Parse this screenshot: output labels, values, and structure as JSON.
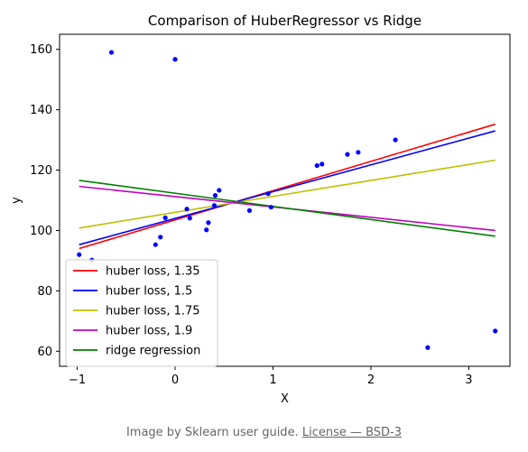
{
  "chart_data": {
    "type": "scatter",
    "title": "Comparison of HuberRegressor vs Ridge",
    "xlabel": "X",
    "ylabel": "y",
    "xlim": [
      -1.18,
      3.42
    ],
    "ylim": [
      55,
      165
    ],
    "xticks": [
      -1,
      0,
      1,
      2,
      3
    ],
    "yticks": [
      60,
      80,
      100,
      120,
      140,
      160
    ],
    "grid": false,
    "legend": "lower-left",
    "points": [
      {
        "x": -0.98,
        "y": 92.0
      },
      {
        "x": -0.85,
        "y": 90.2
      },
      {
        "x": -0.65,
        "y": 159.0
      },
      {
        "x": 0.0,
        "y": 156.7
      },
      {
        "x": -0.2,
        "y": 95.3
      },
      {
        "x": -0.15,
        "y": 97.8
      },
      {
        "x": -0.1,
        "y": 104.2
      },
      {
        "x": 0.12,
        "y": 107.1
      },
      {
        "x": 0.15,
        "y": 104.1
      },
      {
        "x": 0.32,
        "y": 100.2
      },
      {
        "x": 0.34,
        "y": 102.6
      },
      {
        "x": 0.4,
        "y": 108.3
      },
      {
        "x": 0.41,
        "y": 111.6
      },
      {
        "x": 0.45,
        "y": 113.3
      },
      {
        "x": 0.76,
        "y": 106.6
      },
      {
        "x": 0.95,
        "y": 112.2
      },
      {
        "x": 0.98,
        "y": 107.7
      },
      {
        "x": 1.45,
        "y": 121.5
      },
      {
        "x": 1.5,
        "y": 122.0
      },
      {
        "x": 1.76,
        "y": 125.2
      },
      {
        "x": 1.87,
        "y": 125.9
      },
      {
        "x": 2.25,
        "y": 130.0
      },
      {
        "x": 2.58,
        "y": 61.2
      },
      {
        "x": 3.27,
        "y": 66.7
      }
    ],
    "point_color": "#0000ff",
    "series": [
      {
        "name": "huber loss, 1.35",
        "color": "#ff0000",
        "x": [
          -0.98,
          3.27
        ],
        "y": [
          94.0,
          135.2
        ]
      },
      {
        "name": "huber loss, 1.5",
        "color": "#0000ff",
        "x": [
          -0.98,
          3.27
        ],
        "y": [
          95.3,
          133.0
        ]
      },
      {
        "name": "huber loss, 1.75",
        "color": "#bfbf00",
        "x": [
          -0.98,
          3.27
        ],
        "y": [
          100.8,
          123.3
        ]
      },
      {
        "name": "huber loss, 1.9",
        "color": "#bf00bf",
        "x": [
          -0.98,
          3.27
        ],
        "y": [
          114.6,
          100.0
        ]
      },
      {
        "name": "ridge regression",
        "color": "#008000",
        "x": [
          -0.98,
          3.27
        ],
        "y": [
          116.6,
          98.1
        ]
      }
    ]
  },
  "credit": {
    "prefix": "Image by Sklearn user guide.",
    "license": "License — BSD-3"
  }
}
